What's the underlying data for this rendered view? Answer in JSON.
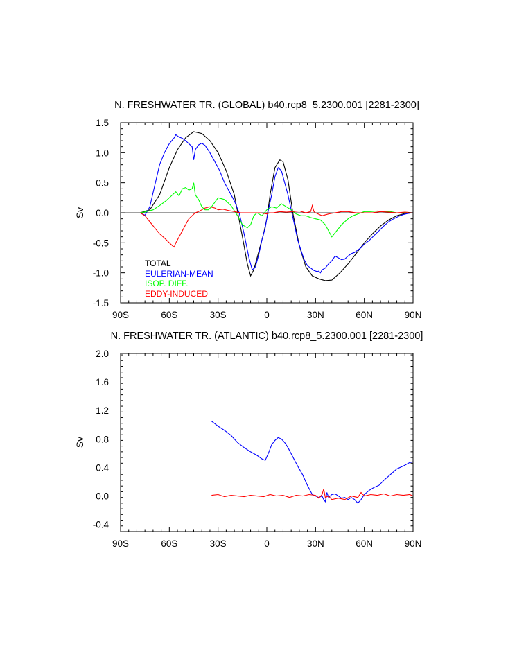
{
  "chart_data": [
    {
      "type": "line",
      "title": "N. FRESHWATER TR. (GLOBAL) b40.rcp8_5.2300.001 [2281-2300]",
      "xlabel": "",
      "ylabel": "Sv",
      "xlim": [
        -90,
        90
      ],
      "ylim": [
        -1.5,
        1.5
      ],
      "xticks": [
        -90,
        -60,
        -30,
        0,
        30,
        60,
        90
      ],
      "xtick_labels": [
        "90S",
        "60S",
        "30S",
        "0",
        "30N",
        "60N",
        "90N"
      ],
      "yticks": [
        -1.5,
        -1.0,
        -0.5,
        0.0,
        0.5,
        1.0,
        1.5
      ],
      "ytick_labels": [
        "-1.5",
        "-1.0",
        "-0.5",
        "0.0",
        "0.5",
        "1.0",
        "1.5"
      ],
      "legend": [
        "TOTAL",
        "EULERIAN-MEAN",
        "ISOP. DIFF.",
        "EDDY-INDUCED"
      ],
      "series": [
        {
          "name": "TOTAL",
          "color": "#000000",
          "x": [
            -78,
            -72,
            -66,
            -60,
            -55,
            -50,
            -45,
            -40,
            -35,
            -30,
            -25,
            -20,
            -15,
            -12,
            -10,
            -8,
            -5,
            -2,
            0,
            2,
            5,
            8,
            10,
            13,
            16,
            20,
            24,
            28,
            32,
            36,
            40,
            45,
            50,
            55,
            60,
            65,
            70,
            75,
            80,
            85,
            90
          ],
          "y": [
            0.0,
            0.05,
            0.3,
            0.75,
            1.05,
            1.25,
            1.35,
            1.32,
            1.2,
            1.0,
            0.7,
            0.3,
            -0.4,
            -0.85,
            -1.05,
            -0.95,
            -0.65,
            -0.35,
            -0.1,
            0.3,
            0.75,
            0.88,
            0.85,
            0.55,
            0.0,
            -0.55,
            -0.9,
            -1.05,
            -1.1,
            -1.13,
            -1.12,
            -1.0,
            -0.85,
            -0.68,
            -0.5,
            -0.35,
            -0.22,
            -0.12,
            -0.05,
            -0.01,
            0.0
          ]
        },
        {
          "name": "EULERIAN-MEAN",
          "color": "#0000ff",
          "x": [
            -78,
            -75,
            -72,
            -69,
            -66,
            -63,
            -60,
            -57,
            -56,
            -54,
            -52,
            -50,
            -48,
            -46,
            -45,
            -44,
            -42,
            -40,
            -38,
            -35,
            -32,
            -29,
            -26,
            -23,
            -20,
            -17,
            -14,
            -11,
            -9,
            -7,
            -5,
            -3,
            -1,
            1,
            3,
            5,
            7,
            9,
            11,
            13,
            15,
            17,
            19,
            21,
            23,
            25,
            27,
            29,
            31,
            32,
            33,
            34,
            36,
            38,
            40,
            42,
            44,
            46,
            48,
            50,
            52,
            54,
            56,
            58,
            60,
            63,
            66,
            69,
            72,
            75,
            78,
            81,
            84,
            87,
            90
          ],
          "y": [
            0.0,
            -0.04,
            0.1,
            0.45,
            0.8,
            1.0,
            1.15,
            1.25,
            1.3,
            1.26,
            1.24,
            1.2,
            1.15,
            1.1,
            0.88,
            1.05,
            1.13,
            1.16,
            1.12,
            1.0,
            0.85,
            0.7,
            0.5,
            0.35,
            0.2,
            0.0,
            -0.35,
            -0.75,
            -0.95,
            -0.9,
            -0.7,
            -0.45,
            -0.25,
            0.05,
            0.3,
            0.6,
            0.75,
            0.7,
            0.5,
            0.3,
            0.05,
            -0.2,
            -0.45,
            -0.62,
            -0.78,
            -0.88,
            -0.92,
            -0.96,
            -0.98,
            -0.97,
            -1.0,
            -0.95,
            -0.92,
            -0.85,
            -0.8,
            -0.72,
            -0.75,
            -0.78,
            -0.77,
            -0.72,
            -0.68,
            -0.66,
            -0.62,
            -0.58,
            -0.52,
            -0.46,
            -0.38,
            -0.3,
            -0.22,
            -0.15,
            -0.1,
            -0.06,
            -0.03,
            -0.01,
            0.0
          ]
        },
        {
          "name": "ISOP. DIFF.",
          "color": "#00ff00",
          "x": [
            -78,
            -74,
            -70,
            -66,
            -62,
            -58,
            -56,
            -54,
            -52,
            -50,
            -48,
            -46,
            -45,
            -44,
            -42,
            -40,
            -38,
            -36,
            -34,
            -30,
            -26,
            -22,
            -18,
            -15,
            -12,
            -10,
            -8,
            -6,
            -3,
            0,
            3,
            6,
            9,
            12,
            15,
            18,
            21,
            24,
            27,
            30,
            33,
            36,
            40,
            43,
            46,
            50,
            53,
            56,
            60,
            64,
            68,
            72,
            76,
            80,
            84,
            88,
            90
          ],
          "y": [
            0.0,
            0.02,
            0.05,
            0.12,
            0.2,
            0.3,
            0.35,
            0.28,
            0.4,
            0.42,
            0.38,
            0.4,
            0.5,
            0.3,
            0.22,
            0.1,
            0.05,
            0.05,
            0.1,
            0.25,
            0.22,
            0.12,
            -0.05,
            -0.2,
            -0.25,
            -0.2,
            -0.05,
            0.0,
            -0.05,
            0.05,
            0.1,
            0.08,
            0.15,
            0.1,
            0.05,
            -0.02,
            -0.05,
            -0.05,
            -0.08,
            -0.1,
            -0.12,
            -0.2,
            -0.4,
            -0.3,
            -0.2,
            -0.1,
            -0.05,
            -0.02,
            0.02,
            0.02,
            0.03,
            0.02,
            0.02,
            0.0,
            0.0,
            0.0,
            0.0
          ]
        },
        {
          "name": "EDDY-INDUCED",
          "color": "#ff0000",
          "x": [
            -78,
            -75,
            -72,
            -69,
            -66,
            -63,
            -60,
            -58,
            -57,
            -56,
            -55,
            -54,
            -52,
            -50,
            -48,
            -46,
            -44,
            -42,
            -40,
            -38,
            -35,
            -32,
            -30,
            -27,
            -24,
            -20,
            -16,
            -12,
            -8,
            -4,
            0,
            2,
            4,
            8,
            12,
            16,
            20,
            24,
            27,
            28,
            29,
            30,
            34,
            38,
            42,
            46,
            50,
            55,
            60,
            65,
            70,
            75,
            80,
            85,
            90
          ],
          "y": [
            0.0,
            -0.05,
            -0.15,
            -0.25,
            -0.35,
            -0.42,
            -0.5,
            -0.55,
            -0.57,
            -0.5,
            -0.45,
            -0.4,
            -0.3,
            -0.2,
            -0.1,
            -0.05,
            0.0,
            0.02,
            0.05,
            0.08,
            0.1,
            0.08,
            0.05,
            0.06,
            0.04,
            0.02,
            0.0,
            0.0,
            0.0,
            0.0,
            -0.02,
            0.0,
            0.0,
            0.02,
            0.01,
            0.02,
            0.03,
            0.0,
            0.02,
            0.12,
            0.02,
            0.0,
            -0.05,
            -0.02,
            0.0,
            0.02,
            0.02,
            0.0,
            0.0,
            0.0,
            0.02,
            0.01,
            0.0,
            0.01,
            0.0
          ]
        }
      ]
    },
    {
      "type": "line",
      "title": "N. FRESHWATER TR. (ATLANTIC) b40.rcp8_5.2300.001 [2281-2300]",
      "xlabel": "",
      "ylabel": "Sv",
      "xlim": [
        -90,
        90
      ],
      "ylim": [
        -0.5,
        2.0
      ],
      "xticks": [
        -90,
        -60,
        -30,
        0,
        30,
        60,
        90
      ],
      "xtick_labels": [
        "90S",
        "60S",
        "30S",
        "0",
        "30N",
        "60N",
        "90N"
      ],
      "yticks": [
        -0.4,
        0.0,
        0.4,
        0.8,
        1.2,
        1.6,
        2.0
      ],
      "ytick_labels": [
        "-0.4",
        "0.0",
        "0.4",
        "0.8",
        "1.2",
        "1.6",
        "2.0"
      ],
      "series": [
        {
          "name": "EULERIAN-MEAN",
          "color": "#0000ff",
          "x": [
            -34,
            -30,
            -26,
            -22,
            -18,
            -14,
            -10,
            -6,
            -3,
            -1,
            1,
            3,
            5,
            7,
            9,
            11,
            13,
            16,
            19,
            22,
            25,
            28,
            30,
            32,
            34,
            35,
            36,
            37,
            38,
            39,
            40,
            42,
            44,
            46,
            48,
            50,
            52,
            54,
            56,
            58,
            60,
            63,
            66,
            69,
            72,
            76,
            80,
            84,
            88,
            90
          ],
          "y": [
            1.05,
            0.98,
            0.92,
            0.85,
            0.75,
            0.68,
            0.62,
            0.57,
            0.52,
            0.5,
            0.6,
            0.72,
            0.78,
            0.82,
            0.8,
            0.75,
            0.68,
            0.55,
            0.42,
            0.3,
            0.15,
            0.02,
            0.0,
            -0.02,
            0.0,
            -0.05,
            -0.08,
            0.05,
            -0.02,
            0.0,
            0.02,
            0.03,
            0.0,
            -0.03,
            -0.02,
            -0.05,
            -0.02,
            -0.05,
            -0.1,
            -0.05,
            0.02,
            0.08,
            0.12,
            0.15,
            0.22,
            0.3,
            0.38,
            0.42,
            0.47,
            0.48
          ]
        },
        {
          "name": "EDDY-INDUCED",
          "color": "#ff0000",
          "x": [
            -34,
            -30,
            -26,
            -22,
            -18,
            -14,
            -10,
            -6,
            -2,
            2,
            6,
            10,
            14,
            18,
            22,
            26,
            30,
            32,
            34,
            35,
            36,
            38,
            40,
            44,
            48,
            52,
            56,
            58,
            60,
            64,
            68,
            72,
            76,
            80,
            84,
            88,
            90
          ],
          "y": [
            0.01,
            0.02,
            -0.01,
            0.01,
            0.0,
            -0.01,
            0.01,
            0.0,
            -0.01,
            0.02,
            0.0,
            0.01,
            -0.02,
            0.01,
            0.0,
            0.02,
            0.01,
            -0.03,
            0.02,
            0.1,
            -0.02,
            0.0,
            -0.05,
            -0.03,
            -0.05,
            0.0,
            -0.02,
            0.05,
            0.0,
            0.02,
            0.01,
            0.03,
            0.0,
            0.02,
            0.01,
            0.02,
            0.0
          ]
        }
      ]
    }
  ]
}
